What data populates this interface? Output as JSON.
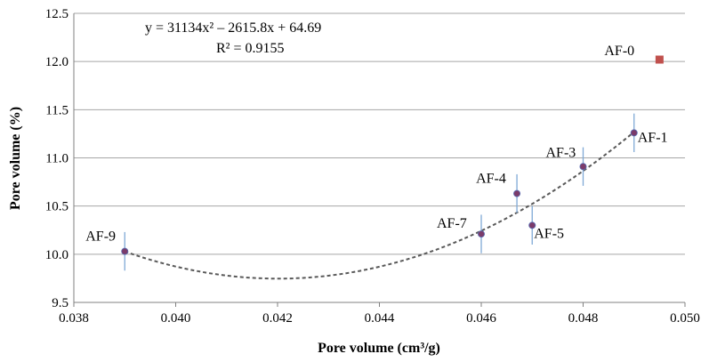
{
  "chart_data": {
    "type": "scatter",
    "xlabel": "Pore volume (cm³/g)",
    "ylabel": "Pore volume (%)",
    "xlim": [
      0.038,
      0.05
    ],
    "ylim": [
      9.5,
      12.5
    ],
    "x_ticks": [
      "0.038",
      "0.040",
      "0.042",
      "0.044",
      "0.046",
      "0.048",
      "0.050"
    ],
    "y_ticks": [
      "9.5",
      "10.0",
      "10.5",
      "11.0",
      "11.5",
      "12.0",
      "12.5"
    ],
    "grid": "horizontal",
    "series": [
      {
        "points": [
          {
            "label": "AF-9",
            "x": 0.039,
            "y": 10.03,
            "err": 0.2
          },
          {
            "label": "AF-7",
            "x": 0.046,
            "y": 10.21,
            "err": 0.2
          },
          {
            "label": "AF-5",
            "x": 0.047,
            "y": 10.3,
            "err": 0.2
          },
          {
            "label": "AF-4",
            "x": 0.0467,
            "y": 10.63,
            "err": 0.2
          },
          {
            "label": "AF-3",
            "x": 0.048,
            "y": 10.91,
            "err": 0.2
          },
          {
            "label": "AF-1",
            "x": 0.049,
            "y": 11.26,
            "err": 0.2
          }
        ],
        "color": "#7b3b6a",
        "errorbar_color": "#7fa9d6"
      },
      {
        "points": [
          {
            "label": "AF-0",
            "x": 0.0495,
            "y": 12.02
          }
        ],
        "color": "#c0504d",
        "marker": "square"
      }
    ],
    "trendline": {
      "equation": "y = 31134x² – 2615.8x + 64.69",
      "r_squared": "R² = 0.9155",
      "coefficients": [
        31134,
        -2615.8,
        64.69
      ],
      "x_range": [
        0.039,
        0.049
      ],
      "color": "#595959",
      "style": "dashed"
    }
  }
}
